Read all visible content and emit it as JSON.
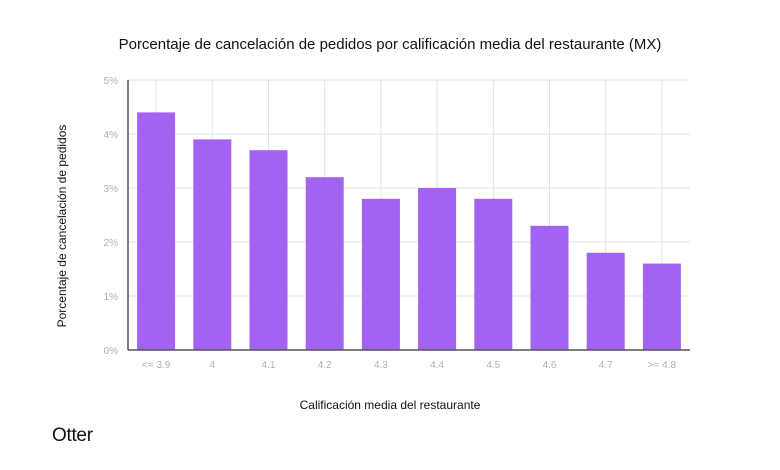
{
  "chart_data": {
    "type": "bar",
    "title": "Porcentaje de cancelación de pedidos por calificación media del restaurante (MX)",
    "xlabel": "Calificación media del restaurante",
    "ylabel": "Porcentaje de cancelación de pedidos",
    "categories": [
      "<= 3.9",
      "4",
      "4.1",
      "4.2",
      "4.3",
      "4.4",
      "4.5",
      "4.6",
      "4.7",
      ">= 4.8"
    ],
    "values": [
      4.4,
      3.9,
      3.7,
      3.2,
      2.8,
      3.0,
      2.8,
      2.3,
      1.8,
      1.6
    ],
    "unit": "%",
    "ylim": [
      0,
      5
    ],
    "yticks": [
      "0%",
      "1%",
      "2%",
      "3%",
      "4%",
      "5%"
    ],
    "grid": true,
    "bar_color": "#a462f2"
  },
  "brand": {
    "logo_text": "Otter"
  }
}
